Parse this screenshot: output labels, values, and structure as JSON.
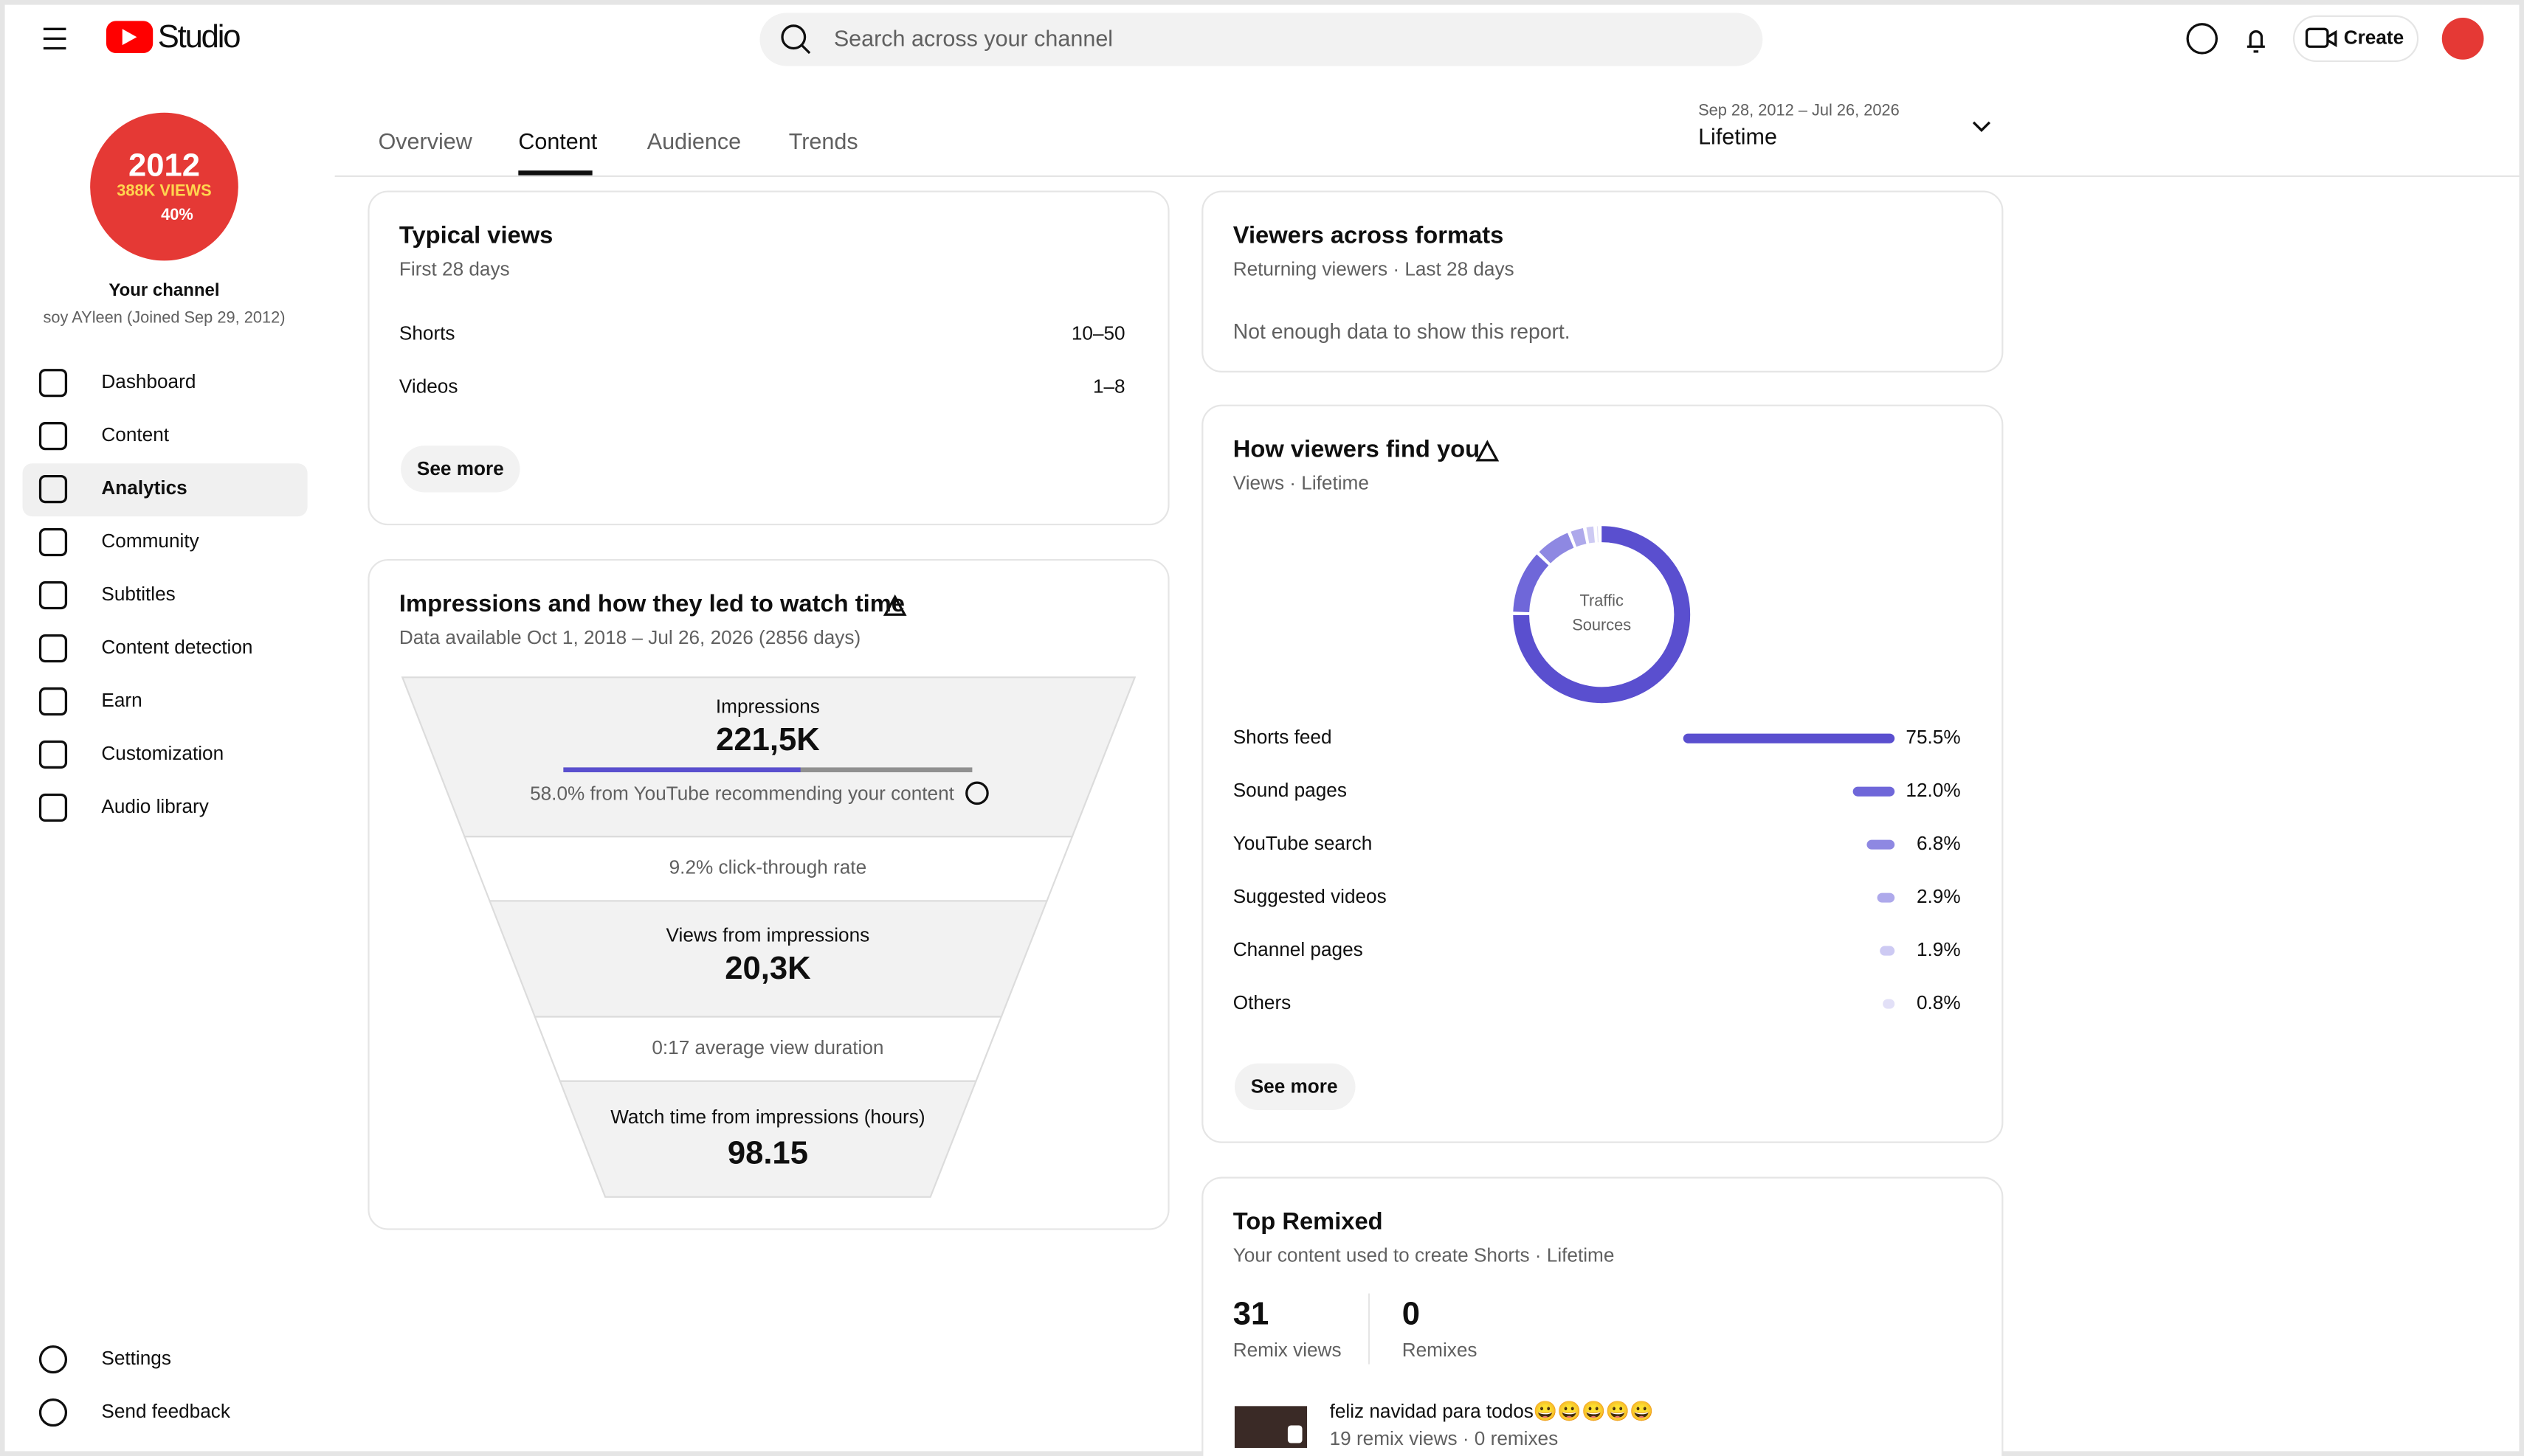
{
  "header": {
    "brand": "Studio",
    "search_placeholder": "Search across your channel",
    "create": "Create"
  },
  "channel": {
    "avatar_year": "2012",
    "avatar_views": "388K VIEWS",
    "avatar_pct": "40%",
    "label": "Your channel",
    "name": "soy AYleen (Joined Sep 29, 2012)"
  },
  "nav": [
    "Dashboard",
    "Content",
    "Analytics",
    "Community",
    "Subtitles",
    "Content detection",
    "Earn",
    "Customization",
    "Audio library"
  ],
  "nav_bottom": [
    "Settings",
    "Send feedback"
  ],
  "tabs": [
    "Overview",
    "Content",
    "Audience",
    "Trends"
  ],
  "date_range": {
    "range": "Sep 28, 2012 – Jul 26, 2026",
    "label": "Lifetime"
  },
  "typical_views": {
    "title": "Typical views",
    "subtitle": "First 28 days",
    "rows": [
      [
        "Shorts",
        "10–50"
      ],
      [
        "Videos",
        "1–8"
      ]
    ],
    "button": "See more"
  },
  "impressions": {
    "title": "Impressions and how they led to watch time",
    "subtitle": "Data available Oct 1, 2018 – Jul 26, 2026 (2856 days)",
    "impressions_label": "Impressions",
    "impressions_value": "221,5K",
    "recommended_share": 58.0,
    "recommended_text": "58.0% from YouTube recommending your content",
    "ctr": "9.2% click-through rate",
    "views_label": "Views from impressions",
    "views_value": "20,3K",
    "avd": "0:17 average view duration",
    "watch_label": "Watch time from impressions (hours)",
    "watch_value": "98.15"
  },
  "formats": {
    "title": "Viewers across formats",
    "subtitle": "Returning viewers · Last 28 days",
    "message": "Not enough data to show this report."
  },
  "traffic": {
    "title": "How viewers find you",
    "subtitle": "Views · Lifetime",
    "center_1": "Traffic",
    "center_2": "Sources",
    "names": [
      "Shorts feed",
      "Sound pages",
      "YouTube search",
      "Suggested videos",
      "Channel pages",
      "Others"
    ],
    "values": [
      75.5,
      12.0,
      6.8,
      2.9,
      1.9,
      0.8
    ],
    "value_labels": [
      "75.5%",
      "12.0%",
      "6.8%",
      "2.9%",
      "1.9%",
      "0.8%"
    ],
    "colors": [
      "#5a4fcf",
      "#6f67d9",
      "#8e88e2",
      "#aea9eb",
      "#cdcaf3",
      "#e2e0f7"
    ],
    "button": "See more"
  },
  "remixed": {
    "title": "Top Remixed",
    "subtitle": "Your content used to create Shorts · Lifetime",
    "remix_views": "31",
    "remix_views_label": "Remix views",
    "remixes": "0",
    "remixes_label": "Remixes",
    "item_title": "feliz navidad para todos😀😀😀😀😀",
    "item_meta": "19 remix views · 0 remixes"
  }
}
